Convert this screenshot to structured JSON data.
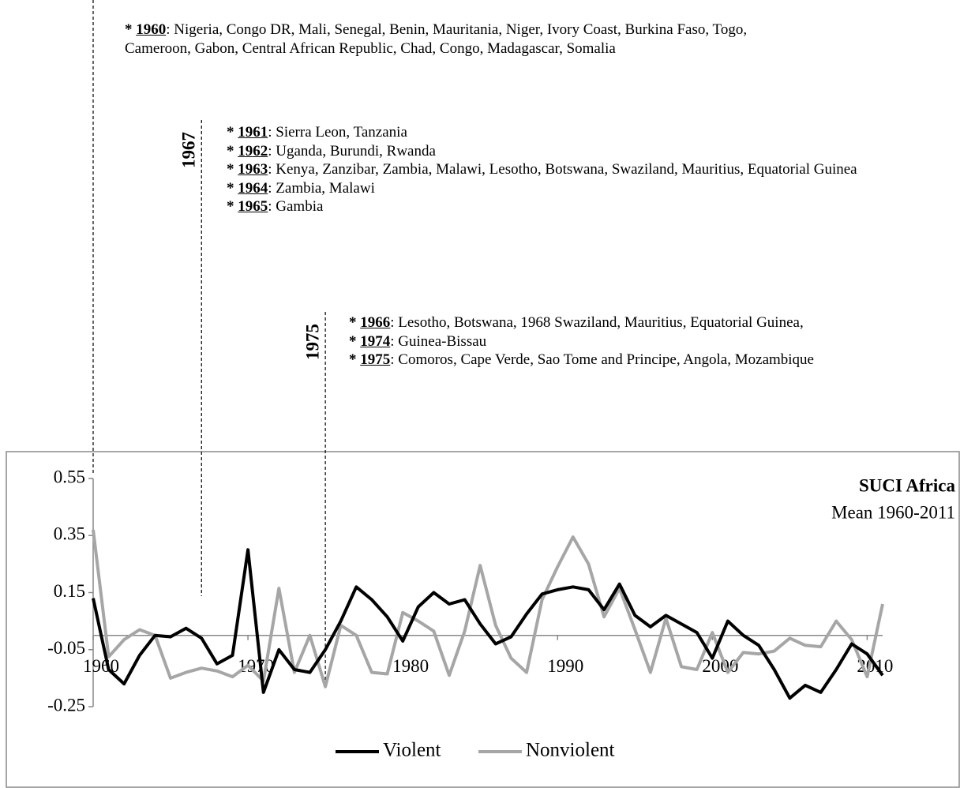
{
  "chart_data": {
    "type": "line",
    "title": "SUCI Africa",
    "subtitle": "Mean 1960-2011",
    "xlim": [
      1960,
      2011
    ],
    "xticks": [
      1960,
      1970,
      1980,
      1990,
      2000,
      2010
    ],
    "ylim": [
      -0.25,
      0.55
    ],
    "yticks": [
      0.55,
      0.35,
      0.15,
      -0.05,
      -0.25
    ],
    "x": [
      1960,
      1961,
      1962,
      1963,
      1964,
      1965,
      1966,
      1967,
      1968,
      1969,
      1970,
      1971,
      1972,
      1973,
      1974,
      1975,
      1976,
      1977,
      1978,
      1979,
      1980,
      1981,
      1982,
      1983,
      1984,
      1985,
      1986,
      1987,
      1988,
      1989,
      1990,
      1991,
      1992,
      1993,
      1994,
      1995,
      1996,
      1997,
      1998,
      1999,
      2000,
      2001,
      2002,
      2003,
      2004,
      2005,
      2006,
      2007,
      2008,
      2009,
      2010,
      2011
    ],
    "series": [
      {
        "name": "Violent",
        "color": "#000000",
        "values": [
          0.13,
          -0.12,
          -0.17,
          -0.07,
          0.0,
          -0.005,
          0.025,
          -0.01,
          -0.1,
          -0.07,
          0.3,
          -0.2,
          -0.05,
          -0.12,
          -0.13,
          -0.05,
          0.05,
          0.17,
          0.125,
          0.065,
          -0.02,
          0.1,
          0.15,
          0.11,
          0.125,
          0.04,
          -0.03,
          -0.005,
          0.075,
          0.145,
          0.16,
          0.17,
          0.16,
          0.09,
          0.18,
          0.07,
          0.03,
          0.07,
          0.04,
          0.01,
          -0.08,
          0.05,
          0.0,
          -0.035,
          -0.12,
          -0.22,
          -0.175,
          -0.2,
          -0.12,
          -0.03,
          -0.065,
          -0.14
        ]
      },
      {
        "name": "Nonviolent",
        "color": "#a6a6a6",
        "values": [
          0.37,
          -0.075,
          -0.015,
          0.02,
          0.0,
          -0.15,
          -0.13,
          -0.115,
          -0.125,
          -0.145,
          -0.105,
          -0.16,
          0.165,
          -0.13,
          0.0,
          -0.18,
          0.035,
          0.0,
          -0.13,
          -0.135,
          0.08,
          0.05,
          0.015,
          -0.14,
          0.015,
          0.245,
          0.035,
          -0.08,
          -0.13,
          0.125,
          0.24,
          0.345,
          0.25,
          0.065,
          0.165,
          0.02,
          -0.13,
          0.06,
          -0.11,
          -0.12,
          0.01,
          -0.13,
          -0.06,
          -0.065,
          -0.055,
          -0.01,
          -0.035,
          -0.04,
          0.05,
          -0.015,
          -0.145,
          0.11
        ]
      }
    ],
    "vlines": [
      1960,
      1967,
      1975
    ],
    "annotation_groups": [
      {
        "entries": [
          {
            "bullet": "*",
            "year": "1960",
            "text": ": Nigeria, Congo DR, Mali, Senegal, Benin, Mauritania, Niger, Ivory Coast, Burkina Faso, Togo, Cameroon, Gabon, Central African Republic, Chad, Congo, Madagascar, Somalia"
          }
        ]
      },
      {
        "entries": [
          {
            "bullet": "*",
            "year": "1961",
            "text": ": Sierra Leon, Tanzania"
          },
          {
            "bullet": "*",
            "year": "1962",
            "text": ": Uganda, Burundi, Rwanda"
          },
          {
            "bullet": "*",
            "year": "1963",
            "text": ": Kenya, Zanzibar, Zambia, Malawi, Lesotho, Botswana, Swaziland, Mauritius, Equatorial Guinea"
          },
          {
            "bullet": "*",
            "year": "1964",
            "text": ": Zambia, Malawi"
          },
          {
            "bullet": "*",
            "year": "1965",
            "text": ": Gambia"
          }
        ]
      },
      {
        "entries": [
          {
            "bullet": "*",
            "year": "1966",
            "text": ": Lesotho, Botswana, 1968 Swaziland, Mauritius, Equatorial Guinea,"
          },
          {
            "bullet": "*",
            "year": "1974",
            "text": ": Guinea-Bissau"
          },
          {
            "bullet": "*",
            "year": "1975",
            "text": ": Comoros, Cape Verde, Sao Tome and Principe, Angola, Mozambique"
          }
        ]
      }
    ]
  }
}
